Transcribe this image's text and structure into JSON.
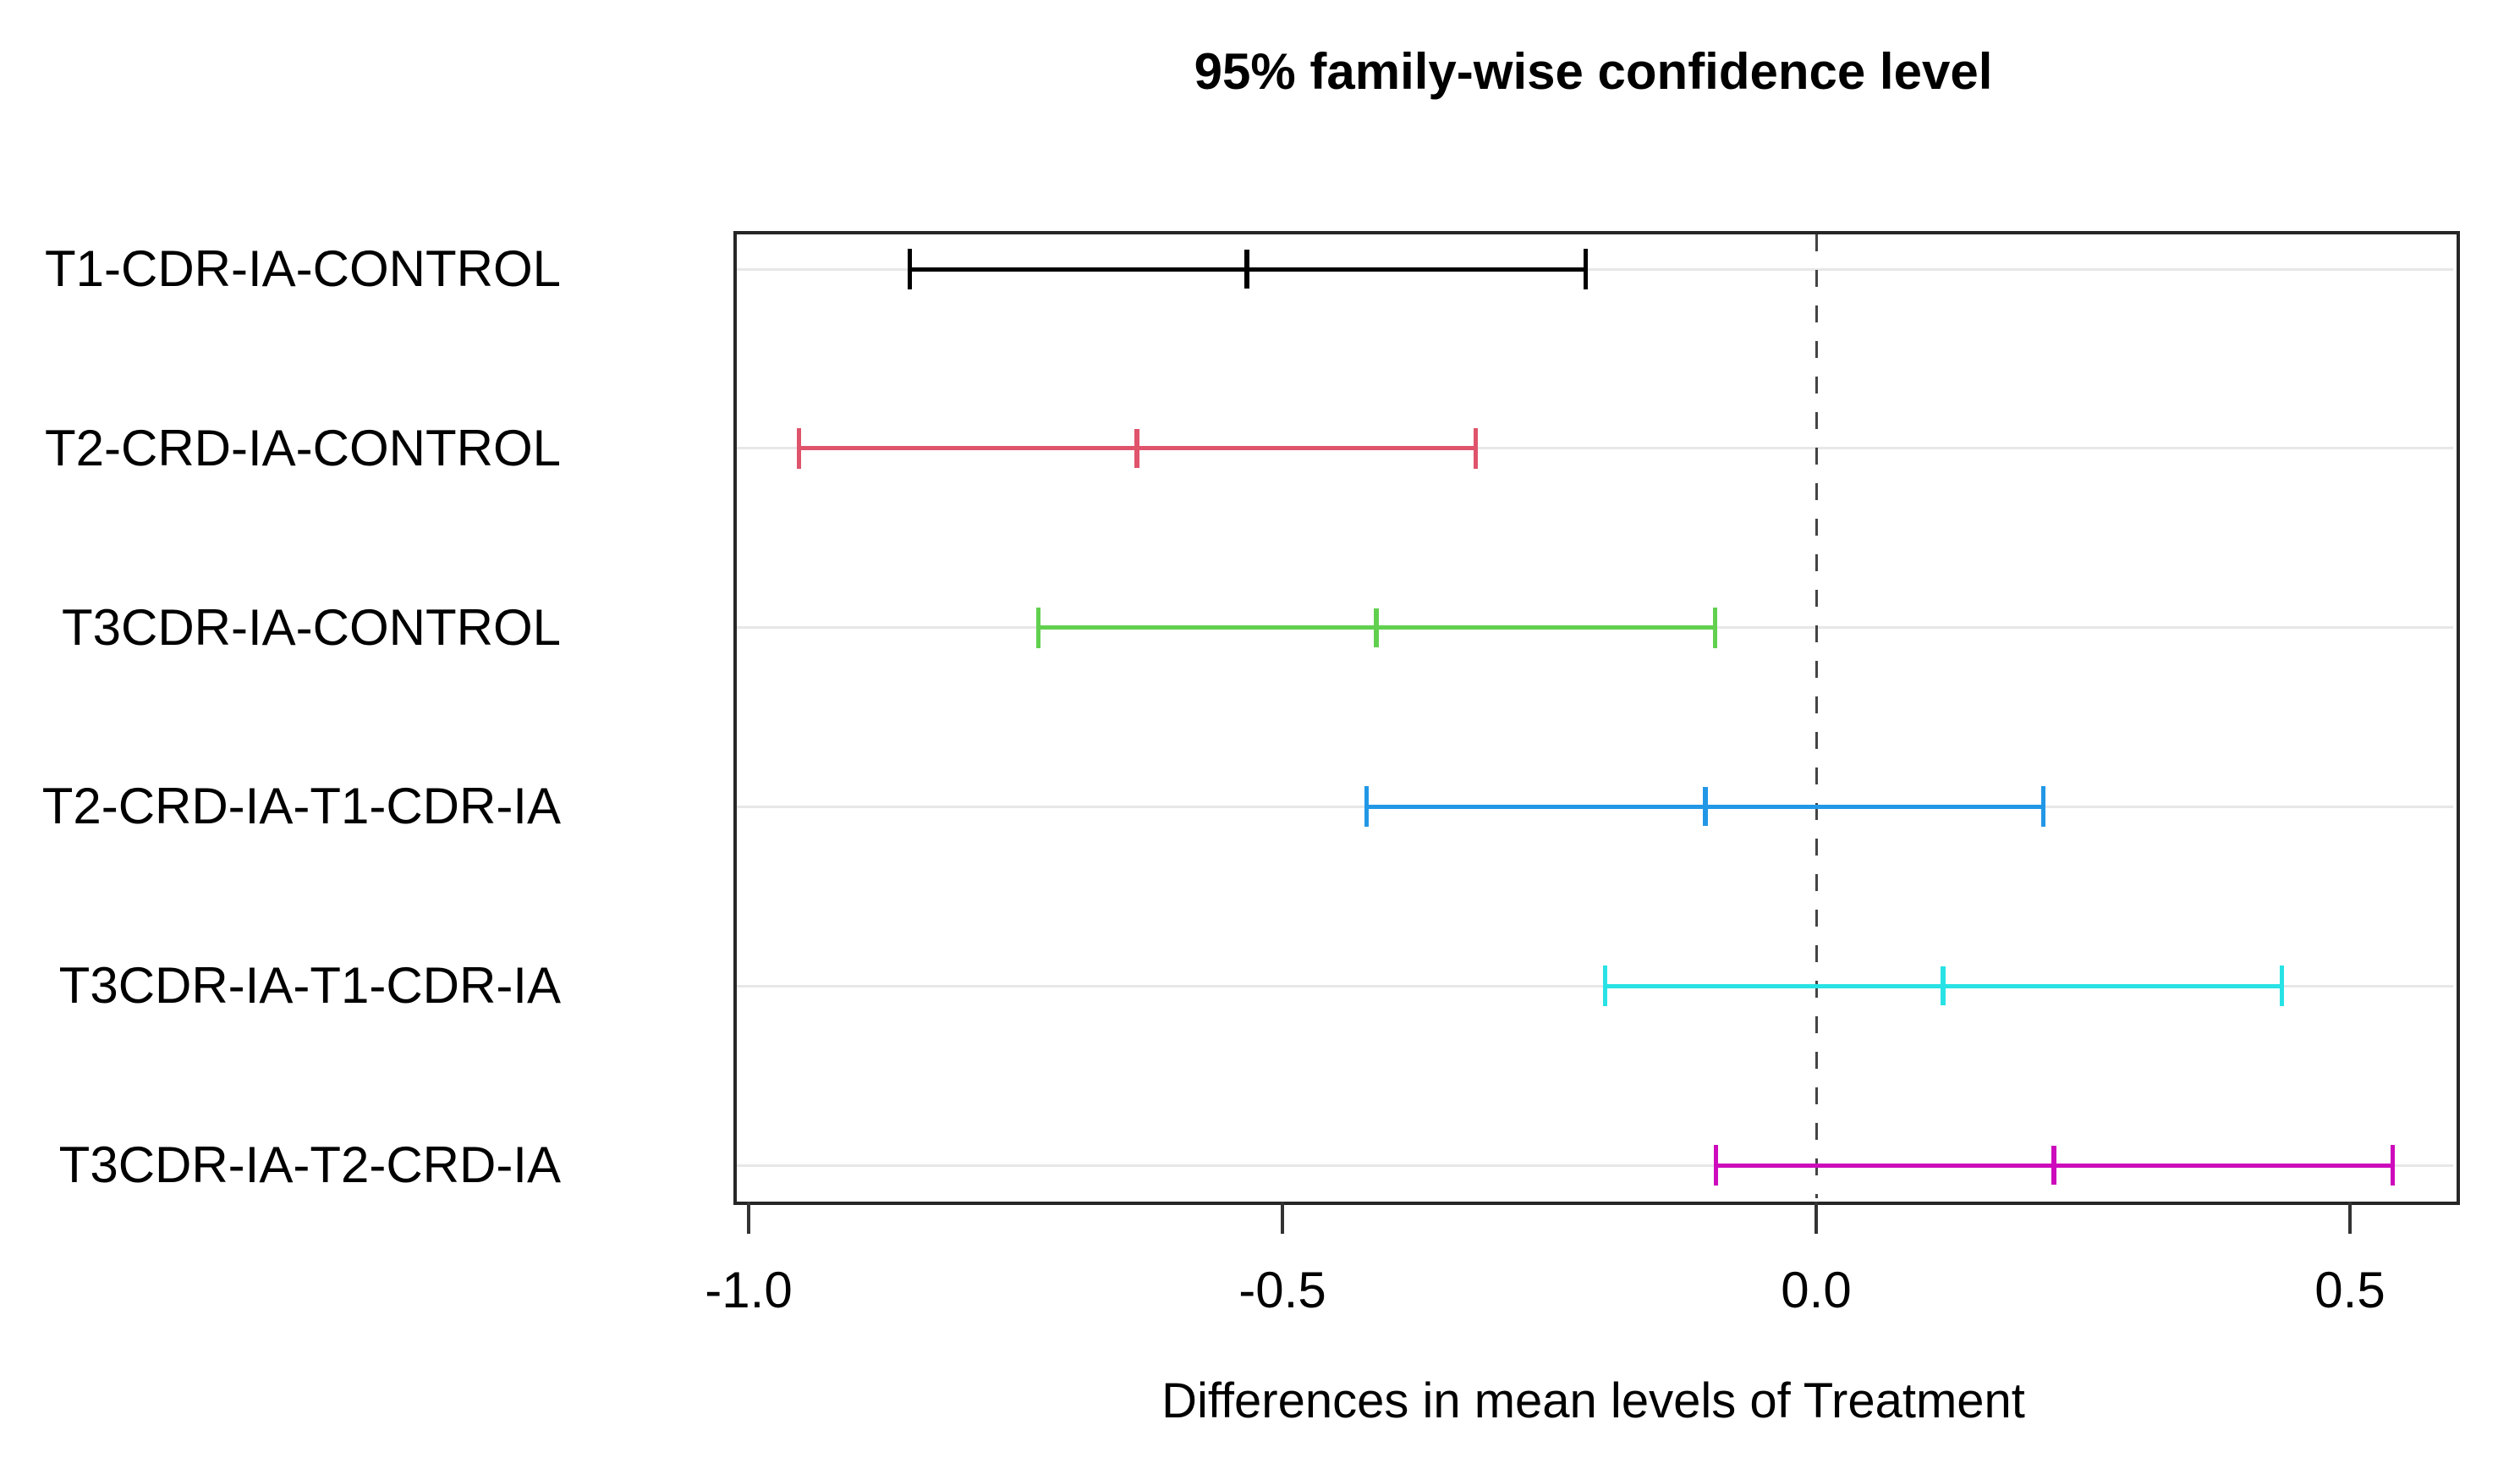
{
  "chart_data": {
    "type": "line",
    "chart_kind": "tukey_hsd_family_wise_confidence_intervals",
    "title": "95% family-wise confidence level",
    "xlabel": "Differences in mean levels of Treatment",
    "categories": [
      "T1-CDR-IA-CONTROL",
      "T2-CRD-IA-CONTROL",
      "T3CDR-IA-CONTROL",
      "T2-CRD-IA-T1-CDR-IA",
      "T3CDR-IA-T1-CDR-IA",
      "T3CDR-IA-T2-CRD-IA"
    ],
    "intervals": [
      {
        "comparison": "T1-CDR-IA-CONTROL",
        "lower": -0.849,
        "estimate": -0.533,
        "upper": -0.216,
        "color": "#000000"
      },
      {
        "comparison": "T2-CRD-IA-CONTROL",
        "lower": -0.953,
        "estimate": -0.636,
        "upper": -0.319,
        "color": "#DF536B"
      },
      {
        "comparison": "T3CDR-IA-CONTROL",
        "lower": -0.729,
        "estimate": -0.412,
        "upper": -0.095,
        "color": "#61D04F"
      },
      {
        "comparison": "T2-CRD-IA-T1-CDR-IA",
        "lower": -0.421,
        "estimate": -0.104,
        "upper": 0.213,
        "color": "#2297E6"
      },
      {
        "comparison": "T3CDR-IA-T1-CDR-IA",
        "lower": -0.198,
        "estimate": 0.119,
        "upper": 0.436,
        "color": "#28E2E5"
      },
      {
        "comparison": "T3CDR-IA-T2-CRD-IA",
        "lower": -0.094,
        "estimate": 0.223,
        "upper": 0.54,
        "color": "#CD0BBC"
      }
    ],
    "x_axis": {
      "ticks": [
        {
          "value": -1.0,
          "label": "-1.0"
        },
        {
          "value": -0.5,
          "label": "-0.5"
        },
        {
          "value": 0.0,
          "label": "0.0"
        },
        {
          "value": 0.5,
          "label": "0.5"
        }
      ],
      "range": [
        -1.013,
        0.598
      ]
    },
    "reference_line": {
      "value": 0.0,
      "style": "dashed",
      "color": "#444444"
    },
    "grid": {
      "horizontal": true,
      "color": "#e7e7e7"
    },
    "legend": "none",
    "box_color": "#262626",
    "tick_color": "#333333",
    "background": "#ffffff"
  }
}
